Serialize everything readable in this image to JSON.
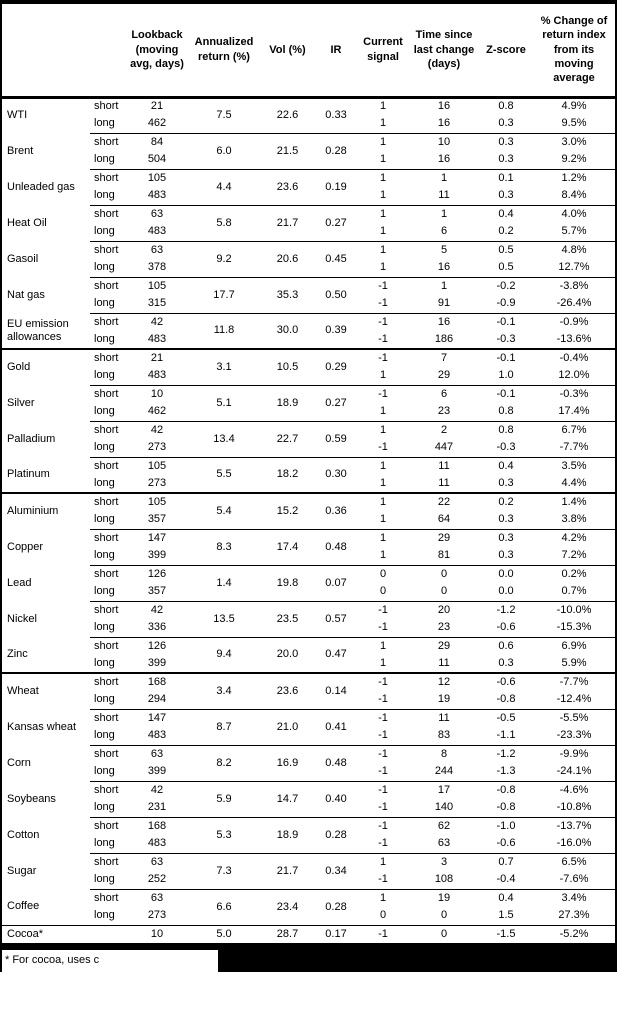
{
  "table": {
    "columns": {
      "name": "",
      "term": "",
      "lookback": "Lookback (moving avg, days)",
      "annualized": "Annualized return (%)",
      "vol": "Vol (%)",
      "ir": "IR",
      "signal": "Current signal",
      "time_since": "Time since last change (days)",
      "zscore": "Z-score",
      "pct_change": "% Change of return index from its moving average"
    },
    "sections": [
      {
        "name": "energy",
        "groups": [
          {
            "name": "WTI",
            "annualized": "7.5",
            "vol": "22.6",
            "ir": "0.33",
            "rows": [
              {
                "term": "short",
                "lookback": "21",
                "signal": "1",
                "time": "16",
                "zscore": "0.8",
                "pct": "4.9%"
              },
              {
                "term": "long",
                "lookback": "462",
                "signal": "1",
                "time": "16",
                "zscore": "0.3",
                "pct": "9.5%"
              }
            ]
          },
          {
            "name": "Brent",
            "annualized": "6.0",
            "vol": "21.5",
            "ir": "0.28",
            "rows": [
              {
                "term": "short",
                "lookback": "84",
                "signal": "1",
                "time": "10",
                "zscore": "0.3",
                "pct": "3.0%"
              },
              {
                "term": "long",
                "lookback": "504",
                "signal": "1",
                "time": "16",
                "zscore": "0.3",
                "pct": "9.2%"
              }
            ]
          },
          {
            "name": "Unleaded gas",
            "annualized": "4.4",
            "vol": "23.6",
            "ir": "0.19",
            "rows": [
              {
                "term": "short",
                "lookback": "105",
                "signal": "1",
                "time": "1",
                "zscore": "0.1",
                "pct": "1.2%"
              },
              {
                "term": "long",
                "lookback": "483",
                "signal": "1",
                "time": "11",
                "zscore": "0.3",
                "pct": "8.4%"
              }
            ]
          },
          {
            "name": "Heat Oil",
            "annualized": "5.8",
            "vol": "21.7",
            "ir": "0.27",
            "rows": [
              {
                "term": "short",
                "lookback": "63",
                "signal": "1",
                "time": "1",
                "zscore": "0.4",
                "pct": "4.0%"
              },
              {
                "term": "long",
                "lookback": "483",
                "signal": "1",
                "time": "6",
                "zscore": "0.2",
                "pct": "5.7%"
              }
            ]
          },
          {
            "name": "Gasoil",
            "annualized": "9.2",
            "vol": "20.6",
            "ir": "0.45",
            "rows": [
              {
                "term": "short",
                "lookback": "63",
                "signal": "1",
                "time": "5",
                "zscore": "0.5",
                "pct": "4.8%"
              },
              {
                "term": "long",
                "lookback": "378",
                "signal": "1",
                "time": "16",
                "zscore": "0.5",
                "pct": "12.7%"
              }
            ]
          },
          {
            "name": "Nat gas",
            "annualized": "17.7",
            "vol": "35.3",
            "ir": "0.50",
            "rows": [
              {
                "term": "short",
                "lookback": "105",
                "signal": "-1",
                "time": "1",
                "zscore": "-0.2",
                "pct": "-3.8%"
              },
              {
                "term": "long",
                "lookback": "315",
                "signal": "-1",
                "time": "91",
                "zscore": "-0.9",
                "pct": "-26.4%"
              }
            ]
          },
          {
            "name": "EU emission allowances",
            "annualized": "11.8",
            "vol": "30.0",
            "ir": "0.39",
            "rows": [
              {
                "term": "short",
                "lookback": "42",
                "signal": "-1",
                "time": "16",
                "zscore": "-0.1",
                "pct": "-0.9%"
              },
              {
                "term": "long",
                "lookback": "483",
                "signal": "-1",
                "time": "186",
                "zscore": "-0.3",
                "pct": "-13.6%"
              }
            ]
          }
        ]
      },
      {
        "name": "precious-metals",
        "groups": [
          {
            "name": "Gold",
            "annualized": "3.1",
            "vol": "10.5",
            "ir": "0.29",
            "rows": [
              {
                "term": "short",
                "lookback": "21",
                "signal": "-1",
                "time": "7",
                "zscore": "-0.1",
                "pct": "-0.4%"
              },
              {
                "term": "long",
                "lookback": "483",
                "signal": "1",
                "time": "29",
                "zscore": "1.0",
                "pct": "12.0%"
              }
            ]
          },
          {
            "name": "Silver",
            "annualized": "5.1",
            "vol": "18.9",
            "ir": "0.27",
            "rows": [
              {
                "term": "short",
                "lookback": "10",
                "signal": "-1",
                "time": "6",
                "zscore": "-0.1",
                "pct": "-0.3%"
              },
              {
                "term": "long",
                "lookback": "462",
                "signal": "1",
                "time": "23",
                "zscore": "0.8",
                "pct": "17.4%"
              }
            ]
          },
          {
            "name": "Palladium",
            "annualized": "13.4",
            "vol": "22.7",
            "ir": "0.59",
            "rows": [
              {
                "term": "short",
                "lookback": "42",
                "signal": "1",
                "time": "2",
                "zscore": "0.8",
                "pct": "6.7%"
              },
              {
                "term": "long",
                "lookback": "273",
                "signal": "-1",
                "time": "447",
                "zscore": "-0.3",
                "pct": "-7.7%"
              }
            ]
          },
          {
            "name": "Platinum",
            "annualized": "5.5",
            "vol": "18.2",
            "ir": "0.30",
            "rows": [
              {
                "term": "short",
                "lookback": "105",
                "signal": "1",
                "time": "11",
                "zscore": "0.4",
                "pct": "3.5%"
              },
              {
                "term": "long",
                "lookback": "273",
                "signal": "1",
                "time": "11",
                "zscore": "0.3",
                "pct": "4.4%"
              }
            ]
          }
        ]
      },
      {
        "name": "base-metals",
        "groups": [
          {
            "name": "Aluminium",
            "annualized": "5.4",
            "vol": "15.2",
            "ir": "0.36",
            "rows": [
              {
                "term": "short",
                "lookback": "105",
                "signal": "1",
                "time": "22",
                "zscore": "0.2",
                "pct": "1.4%"
              },
              {
                "term": "long",
                "lookback": "357",
                "signal": "1",
                "time": "64",
                "zscore": "0.3",
                "pct": "3.8%"
              }
            ]
          },
          {
            "name": "Copper",
            "annualized": "8.3",
            "vol": "17.4",
            "ir": "0.48",
            "rows": [
              {
                "term": "short",
                "lookback": "147",
                "signal": "1",
                "time": "29",
                "zscore": "0.3",
                "pct": "4.2%"
              },
              {
                "term": "long",
                "lookback": "399",
                "signal": "1",
                "time": "81",
                "zscore": "0.3",
                "pct": "7.2%"
              }
            ]
          },
          {
            "name": "Lead",
            "annualized": "1.4",
            "vol": "19.8",
            "ir": "0.07",
            "rows": [
              {
                "term": "short",
                "lookback": "126",
                "signal": "0",
                "time": "0",
                "zscore": "0.0",
                "pct": "0.2%"
              },
              {
                "term": "long",
                "lookback": "357",
                "signal": "0",
                "time": "0",
                "zscore": "0.0",
                "pct": "0.7%"
              }
            ]
          },
          {
            "name": "Nickel",
            "annualized": "13.5",
            "vol": "23.5",
            "ir": "0.57",
            "rows": [
              {
                "term": "short",
                "lookback": "42",
                "signal": "-1",
                "time": "20",
                "zscore": "-1.2",
                "pct": "-10.0%"
              },
              {
                "term": "long",
                "lookback": "336",
                "signal": "-1",
                "time": "23",
                "zscore": "-0.6",
                "pct": "-15.3%"
              }
            ]
          },
          {
            "name": "Zinc",
            "annualized": "9.4",
            "vol": "20.0",
            "ir": "0.47",
            "rows": [
              {
                "term": "short",
                "lookback": "126",
                "signal": "1",
                "time": "29",
                "zscore": "0.6",
                "pct": "6.9%"
              },
              {
                "term": "long",
                "lookback": "399",
                "signal": "1",
                "time": "11",
                "zscore": "0.3",
                "pct": "5.9%"
              }
            ]
          }
        ]
      },
      {
        "name": "agriculture",
        "groups": [
          {
            "name": "Wheat",
            "annualized": "3.4",
            "vol": "23.6",
            "ir": "0.14",
            "rows": [
              {
                "term": "short",
                "lookback": "168",
                "signal": "-1",
                "time": "12",
                "zscore": "-0.6",
                "pct": "-7.7%"
              },
              {
                "term": "long",
                "lookback": "294",
                "signal": "-1",
                "time": "19",
                "zscore": "-0.8",
                "pct": "-12.4%"
              }
            ]
          },
          {
            "name": "Kansas wheat",
            "annualized": "8.7",
            "vol": "21.0",
            "ir": "0.41",
            "rows": [
              {
                "term": "short",
                "lookback": "147",
                "signal": "-1",
                "time": "11",
                "zscore": "-0.5",
                "pct": "-5.5%"
              },
              {
                "term": "long",
                "lookback": "483",
                "signal": "-1",
                "time": "83",
                "zscore": "-1.1",
                "pct": "-23.3%"
              }
            ]
          },
          {
            "name": "Corn",
            "annualized": "8.2",
            "vol": "16.9",
            "ir": "0.48",
            "rows": [
              {
                "term": "short",
                "lookback": "63",
                "signal": "-1",
                "time": "8",
                "zscore": "-1.2",
                "pct": "-9.9%"
              },
              {
                "term": "long",
                "lookback": "399",
                "signal": "-1",
                "time": "244",
                "zscore": "-1.3",
                "pct": "-24.1%"
              }
            ]
          },
          {
            "name": "Soybeans",
            "annualized": "5.9",
            "vol": "14.7",
            "ir": "0.40",
            "rows": [
              {
                "term": "short",
                "lookback": "42",
                "signal": "-1",
                "time": "17",
                "zscore": "-0.8",
                "pct": "-4.6%"
              },
              {
                "term": "long",
                "lookback": "231",
                "signal": "-1",
                "time": "140",
                "zscore": "-0.8",
                "pct": "-10.8%"
              }
            ]
          },
          {
            "name": "Cotton",
            "annualized": "5.3",
            "vol": "18.9",
            "ir": "0.28",
            "rows": [
              {
                "term": "short",
                "lookback": "168",
                "signal": "-1",
                "time": "62",
                "zscore": "-1.0",
                "pct": "-13.7%"
              },
              {
                "term": "long",
                "lookback": "483",
                "signal": "-1",
                "time": "63",
                "zscore": "-0.6",
                "pct": "-16.0%"
              }
            ]
          },
          {
            "name": "Sugar",
            "annualized": "7.3",
            "vol": "21.7",
            "ir": "0.34",
            "rows": [
              {
                "term": "short",
                "lookback": "63",
                "signal": "1",
                "time": "3",
                "zscore": "0.7",
                "pct": "6.5%"
              },
              {
                "term": "long",
                "lookback": "252",
                "signal": "-1",
                "time": "108",
                "zscore": "-0.4",
                "pct": "-7.6%"
              }
            ]
          },
          {
            "name": "Coffee",
            "annualized": "6.6",
            "vol": "23.4",
            "ir": "0.28",
            "rows": [
              {
                "term": "short",
                "lookback": "63",
                "signal": "1",
                "time": "19",
                "zscore": "0.4",
                "pct": "3.4%"
              },
              {
                "term": "long",
                "lookback": "273",
                "signal": "0",
                "time": "0",
                "zscore": "1.5",
                "pct": "27.3%"
              }
            ]
          },
          {
            "name": "Cocoa*",
            "annualized": "5.0",
            "vol": "28.7",
            "ir": "0.17",
            "divider": "full",
            "rows": [
              {
                "term": "",
                "lookback": "10",
                "signal": "-1",
                "time": "0",
                "zscore": "-1.5",
                "pct": "-5.2%"
              }
            ]
          }
        ]
      }
    ]
  },
  "footnote": "* For cocoa, uses c"
}
